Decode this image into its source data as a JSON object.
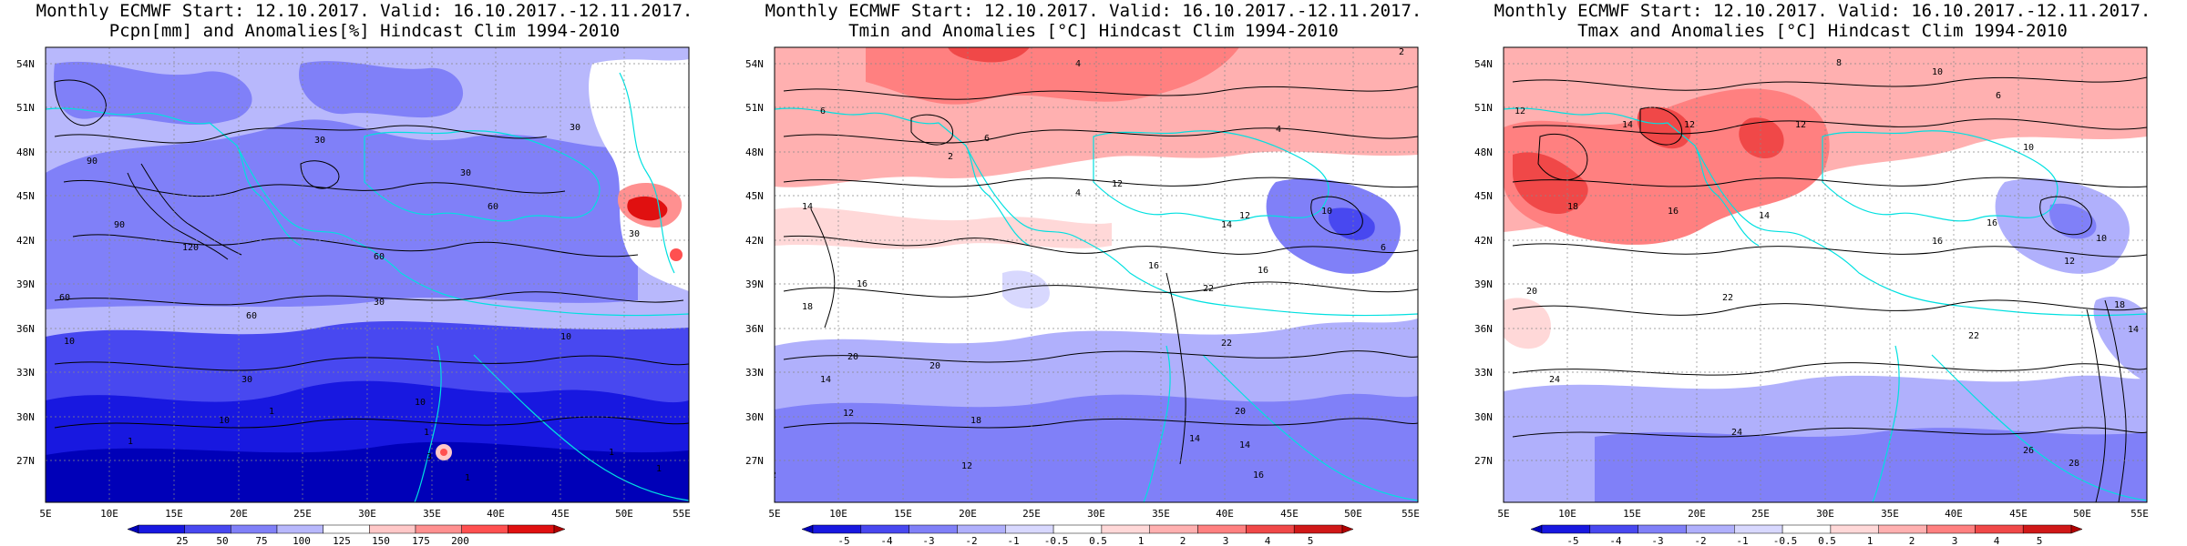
{
  "panels": [
    {
      "id": "pcpn",
      "title_line1": "Monthly ECMWF Start: 12.10.2017. Valid: 16.10.2017.-12.11.2017.",
      "title_line2": "Pcpn[mm] and Anomalies[%] Hindcast Clim 1994-2010",
      "lat_labels": [
        "54N",
        "51N",
        "48N",
        "45N",
        "42N",
        "39N",
        "36N",
        "33N",
        "30N",
        "27N"
      ],
      "lon_labels": [
        "5E",
        "10E",
        "15E",
        "20E",
        "25E",
        "30E",
        "35E",
        "40E",
        "45E",
        "50E",
        "55E"
      ],
      "colorbar_labels": [
        "25",
        "50",
        "75",
        "100",
        "125",
        "150",
        "175",
        "200"
      ],
      "colorbar_colors": [
        "#0000b8",
        "#1818e0",
        "#4848f0",
        "#8080f8",
        "#b8b8fc",
        "#ffffff",
        "#ffc8c8",
        "#ff9090",
        "#ff5050",
        "#e01010",
        "#b00000"
      ],
      "contour_labels": [
        "30",
        "30",
        "30",
        "60",
        "60",
        "90",
        "90",
        "120",
        "60",
        "60",
        "30",
        "30",
        "10",
        "10",
        "1",
        "1",
        "1",
        "3",
        "1",
        "1",
        "1",
        "10",
        "10",
        "30"
      ]
    },
    {
      "id": "tmin",
      "title_line1": "Monthly ECMWF Start: 12.10.2017. Valid: 16.10.2017.-12.11.2017.",
      "title_line2": "Tmin and Anomalies [°C] Hindcast Clim 1994-2010",
      "lat_labels": [
        "54N",
        "51N",
        "48N",
        "45N",
        "42N",
        "39N",
        "36N",
        "33N",
        "30N",
        "27N"
      ],
      "lon_labels": [
        "5E",
        "10E",
        "15E",
        "20E",
        "25E",
        "30E",
        "35E",
        "40E",
        "45E",
        "50E",
        "55E"
      ],
      "colorbar_labels": [
        "-5",
        "-4",
        "-3",
        "-2",
        "-1",
        "-0.5",
        "0.5",
        "1",
        "2",
        "3",
        "4",
        "5"
      ],
      "colorbar_colors": [
        "#0000b8",
        "#1818e0",
        "#4848f0",
        "#8080f8",
        "#b0b0fc",
        "#d8d8fe",
        "#ffffff",
        "#ffd8d8",
        "#ffb0b0",
        "#ff8080",
        "#f04848",
        "#d01818",
        "#b00000"
      ],
      "contour_labels": [
        "2",
        "4",
        "6",
        "4",
        "2",
        "6",
        "4",
        "14",
        "12",
        "12",
        "14",
        "16",
        "16",
        "18",
        "20",
        "22",
        "22",
        "16",
        "14",
        "12",
        "20",
        "18",
        "14",
        "12",
        "12",
        "16",
        "20",
        "14",
        "10",
        "6"
      ]
    },
    {
      "id": "tmax",
      "title_line1": "Monthly ECMWF Start: 12.10.2017. Valid: 16.10.2017.-12.11.2017.",
      "title_line2": "Tmax and Anomalies [°C] Hindcast Clim 1994-2010",
      "lat_labels": [
        "54N",
        "51N",
        "48N",
        "45N",
        "42N",
        "39N",
        "36N",
        "33N",
        "30N",
        "27N"
      ],
      "lon_labels": [
        "5E",
        "10E",
        "15E",
        "20E",
        "25E",
        "30E",
        "35E",
        "40E",
        "45E",
        "50E",
        "55E"
      ],
      "colorbar_labels": [
        "-5",
        "-4",
        "-3",
        "-2",
        "-1",
        "-0.5",
        "0.5",
        "1",
        "2",
        "3",
        "4",
        "5"
      ],
      "colorbar_colors": [
        "#0000b8",
        "#1818e0",
        "#4848f0",
        "#8080f8",
        "#b0b0fc",
        "#d8d8fe",
        "#ffffff",
        "#ffd8d8",
        "#ffb0b0",
        "#ff8080",
        "#f04848",
        "#d01818",
        "#b00000"
      ],
      "contour_labels": [
        "8",
        "10",
        "6",
        "12",
        "12",
        "14",
        "12",
        "10",
        "16",
        "18",
        "14",
        "16",
        "20",
        "22",
        "22",
        "24",
        "24",
        "26",
        "28",
        "18",
        "14",
        "16",
        "12",
        "10"
      ]
    }
  ]
}
